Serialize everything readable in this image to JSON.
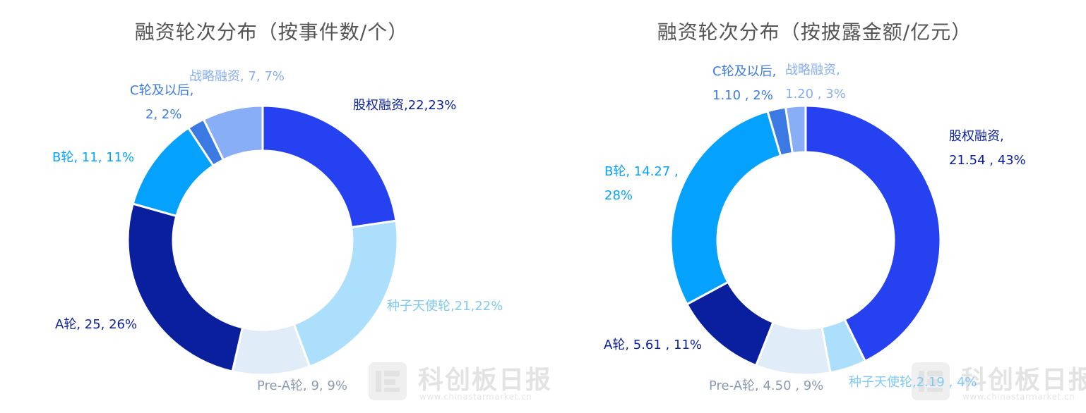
{
  "chart_data": [
    {
      "type": "pie",
      "title": "融资轮次分布（按事件数/个）",
      "categories": [
        "股权融资",
        "种子天使轮",
        "Pre-A轮",
        "A轮",
        "B轮",
        "C轮及以后",
        "战略融资"
      ],
      "values": [
        22,
        21,
        9,
        25,
        11,
        2,
        7
      ],
      "percentages": [
        "23%",
        "22%",
        "9%",
        "26%",
        "11%",
        "2%",
        "7%"
      ],
      "colors": [
        "#2541f0",
        "#acdffb",
        "#e1ecf9",
        "#0a1f9e",
        "#04a2fd",
        "#3b7ae2",
        "#88aef5"
      ],
      "labels": [
        {
          "line1": "股权融资,22,23%",
          "line2": ""
        },
        {
          "line1": "种子天使轮,21,22%",
          "line2": ""
        },
        {
          "line1": "Pre-A轮, 9, 9%",
          "line2": ""
        },
        {
          "line1": "A轮, 25, 26%",
          "line2": ""
        },
        {
          "line1": "B轮, 11, 11%",
          "line2": ""
        },
        {
          "line1": "C轮及以后,",
          "line2": "2, 2%"
        },
        {
          "line1": "战略融资, 7, 7%",
          "line2": ""
        }
      ],
      "label_colors": [
        "#0a1f9e",
        "#7fcaf3",
        "#8a9ab3",
        "#0a1f9e",
        "#04a2fd",
        "#3b7ae2",
        "#88aef5"
      ]
    },
    {
      "type": "pie",
      "title": "融资轮次分布（按披露金额/亿元）",
      "categories": [
        "股权融资",
        "种子天使轮",
        "Pre-A轮",
        "A轮",
        "B轮",
        "C轮及以后",
        "战略融资"
      ],
      "values": [
        21.54,
        2.19,
        4.5,
        5.61,
        14.27,
        1.1,
        1.2
      ],
      "percentages": [
        "43%",
        "4%",
        "9%",
        "11%",
        "28%",
        "2%",
        "3%"
      ],
      "colors": [
        "#2541f0",
        "#acdffb",
        "#e1ecf9",
        "#0a1f9e",
        "#04a2fd",
        "#3b7ae2",
        "#88aef5"
      ],
      "labels": [
        {
          "line1": "股权融资,",
          "line2": "21.54 , 43%"
        },
        {
          "line1": "种子天使轮,2.19 , 4%",
          "line2": ""
        },
        {
          "line1": "Pre-A轮, 4.50 , 9%",
          "line2": ""
        },
        {
          "line1": "A轮, 5.61 , 11%",
          "line2": ""
        },
        {
          "line1": "B轮, 14.27 ,",
          "line2": "28%"
        },
        {
          "line1": "C轮及以后,",
          "line2": "1.10 , 2%"
        },
        {
          "line1": "战略融资,",
          "line2": "1.20 , 3%"
        }
      ],
      "label_colors": [
        "#0a1f9e",
        "#7fcaf3",
        "#8a9ab3",
        "#0a1f9e",
        "#04a2fd",
        "#3b7ae2",
        "#88aef5"
      ]
    }
  ],
  "watermark": {
    "name": "科创板日报",
    "url": "www.chinastarmarket.cn"
  }
}
